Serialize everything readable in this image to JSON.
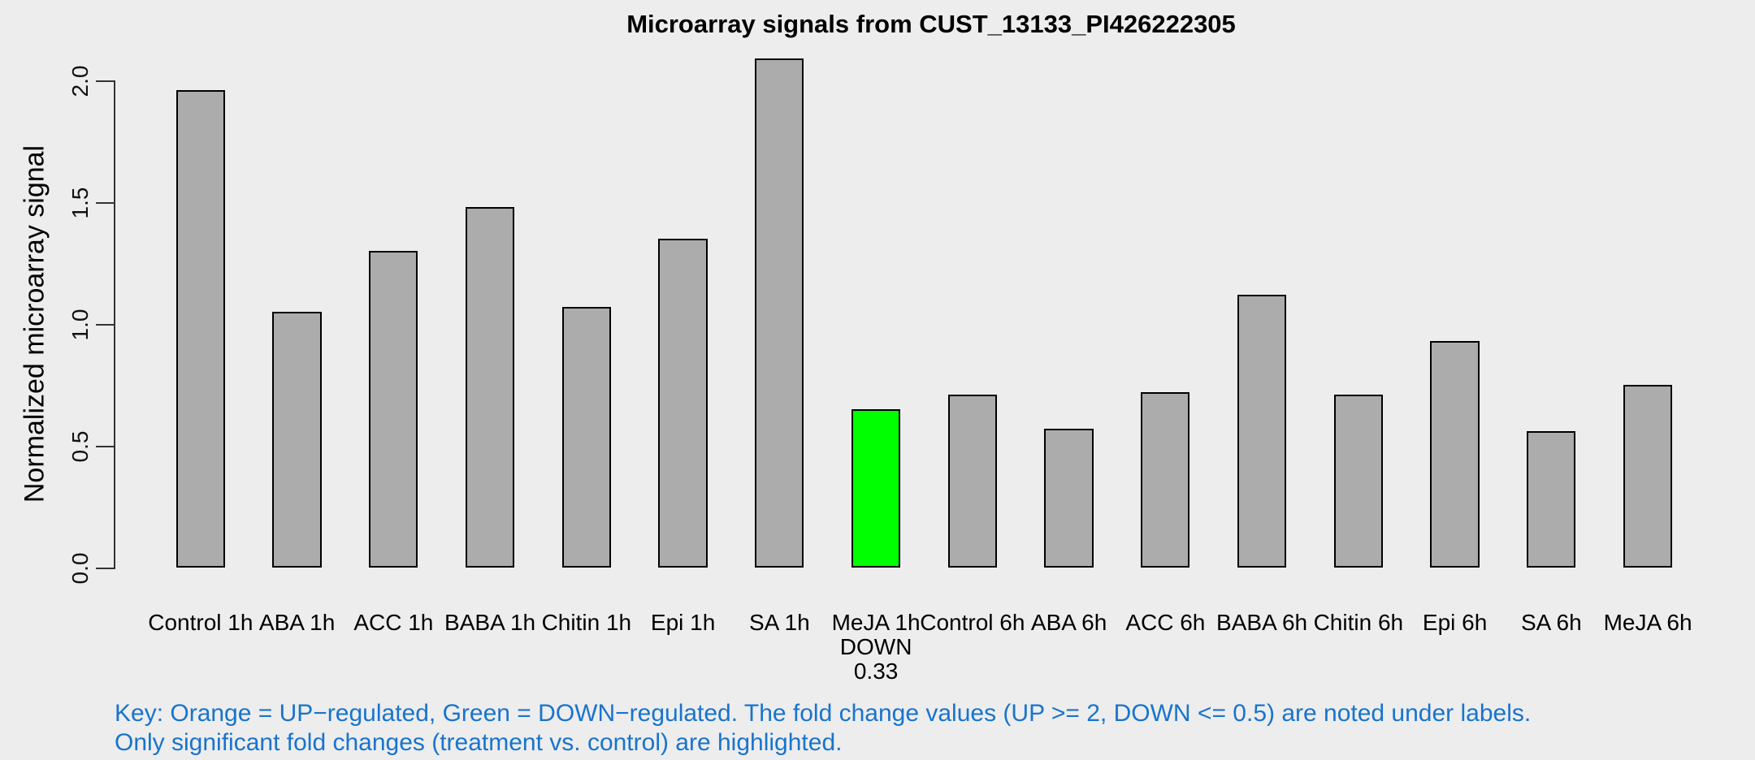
{
  "chart_data": {
    "type": "bar",
    "title": "Microarray signals from CUST_13133_PI426222305",
    "ylabel": "Normalized microarray signal",
    "xlabel": "",
    "categories": [
      "Control 1h",
      "ABA 1h",
      "ACC 1h",
      "BABA 1h",
      "Chitin 1h",
      "Epi 1h",
      "SA 1h",
      "MeJA 1h",
      "Control 6h",
      "ABA 6h",
      "ACC 6h",
      "BABA 6h",
      "Chitin 6h",
      "Epi 6h",
      "SA 6h",
      "MeJA 6h"
    ],
    "values": [
      1.96,
      1.05,
      1.3,
      1.48,
      1.07,
      1.35,
      2.09,
      0.65,
      0.71,
      0.57,
      0.72,
      1.12,
      0.71,
      0.93,
      0.56,
      0.75
    ],
    "yticks": [
      "0.0",
      "0.5",
      "1.0",
      "1.5",
      "2.0"
    ],
    "ylim": [
      0,
      2.09
    ],
    "grid": false,
    "legend": "none",
    "bar_default_color": "#ACACAC",
    "bar_border_color": "#000000",
    "background_color": "#EDEDED",
    "highlighted_bars": [
      {
        "index": 7,
        "color": "#00FF00",
        "regulation": "DOWN",
        "fold_change": "0.33"
      }
    ]
  },
  "footnote": {
    "line1": "Key: Orange = UP−regulated, Green = DOWN−regulated. The fold change values (UP >= 2, DOWN <= 0.5) are noted under labels.",
    "line2": "Only significant fold changes (treatment vs. control) are highlighted.",
    "color": "#1874CD"
  }
}
